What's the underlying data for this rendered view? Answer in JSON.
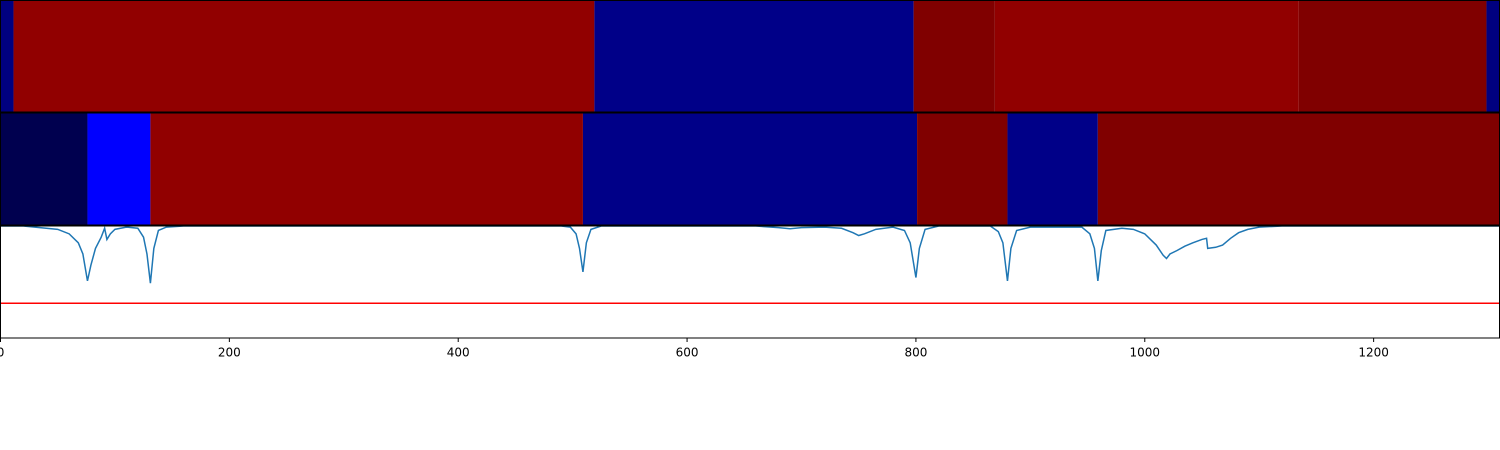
{
  "chart_data": [
    {
      "type": "segments",
      "xlim": [
        0,
        1310
      ],
      "segments": [
        {
          "start": 0,
          "end": 11.4,
          "color": "#000080"
        },
        {
          "start": 11.4,
          "end": 519,
          "color": "#910000"
        },
        {
          "start": 519,
          "end": 798,
          "color": "#000088"
        },
        {
          "start": 798,
          "end": 869,
          "color": "#800000"
        },
        {
          "start": 869,
          "end": 1134.5,
          "color": "#910000"
        },
        {
          "start": 1134.5,
          "end": 1298.6,
          "color": "#800000"
        },
        {
          "start": 1298.6,
          "end": 1310,
          "color": "#000080"
        }
      ]
    },
    {
      "type": "segments",
      "xlim": [
        0,
        1310
      ],
      "segments": [
        {
          "start": 0,
          "end": 76,
          "color": "#00004f"
        },
        {
          "start": 76,
          "end": 131,
          "color": "#0000ff"
        },
        {
          "start": 131,
          "end": 509,
          "color": "#910000"
        },
        {
          "start": 509,
          "end": 801,
          "color": "#000088"
        },
        {
          "start": 801,
          "end": 880,
          "color": "#800000"
        },
        {
          "start": 880,
          "end": 959,
          "color": "#000088"
        },
        {
          "start": 959,
          "end": 1310,
          "color": "#800000"
        }
      ]
    },
    {
      "type": "line",
      "xlim": [
        0,
        1310
      ],
      "ylim": [
        0,
        1
      ],
      "xticks": [
        0,
        200,
        400,
        600,
        800,
        1000,
        1200
      ],
      "x": [
        0,
        20,
        30,
        50,
        60,
        68,
        72,
        76,
        79,
        83,
        88,
        91,
        93,
        96,
        100,
        110,
        120,
        125,
        128,
        131,
        134,
        138,
        145,
        160,
        300,
        490,
        498,
        503,
        506,
        509,
        512,
        516,
        525,
        660,
        680,
        690,
        700,
        720,
        735,
        745,
        750,
        755,
        765,
        780,
        790,
        795,
        800,
        803,
        808,
        820,
        865,
        872,
        876,
        880,
        883,
        888,
        900,
        945,
        952,
        956,
        959,
        962,
        966,
        980,
        990,
        1000,
        1010,
        1016,
        1019,
        1022,
        1028,
        1035,
        1042,
        1050,
        1054,
        1055,
        1062,
        1068,
        1075,
        1082,
        1090,
        1100,
        1120,
        1310
      ],
      "series": [
        {
          "color": "#1f77b4",
          "values": [
            1.0,
            1.0,
            0.99,
            0.97,
            0.93,
            0.85,
            0.75,
            0.51,
            0.65,
            0.8,
            0.9,
            0.98,
            0.88,
            0.93,
            0.97,
            0.99,
            0.98,
            0.9,
            0.75,
            0.49,
            0.8,
            0.96,
            0.99,
            1.0,
            1.0,
            1.0,
            0.99,
            0.93,
            0.8,
            0.59,
            0.85,
            0.97,
            1.0,
            1.0,
            0.985,
            0.975,
            0.985,
            0.99,
            0.98,
            0.94,
            0.915,
            0.93,
            0.97,
            0.99,
            0.96,
            0.85,
            0.54,
            0.8,
            0.97,
            1.0,
            1.0,
            0.95,
            0.85,
            0.51,
            0.8,
            0.96,
            0.99,
            0.99,
            0.93,
            0.8,
            0.51,
            0.78,
            0.96,
            0.98,
            0.97,
            0.93,
            0.83,
            0.74,
            0.71,
            0.75,
            0.78,
            0.82,
            0.85,
            0.88,
            0.89,
            0.8,
            0.81,
            0.83,
            0.89,
            0.94,
            0.97,
            0.99,
            1.0,
            1.0
          ]
        }
      ],
      "hlines": [
        {
          "value": 0.31,
          "color": "#ff0000"
        }
      ]
    }
  ]
}
